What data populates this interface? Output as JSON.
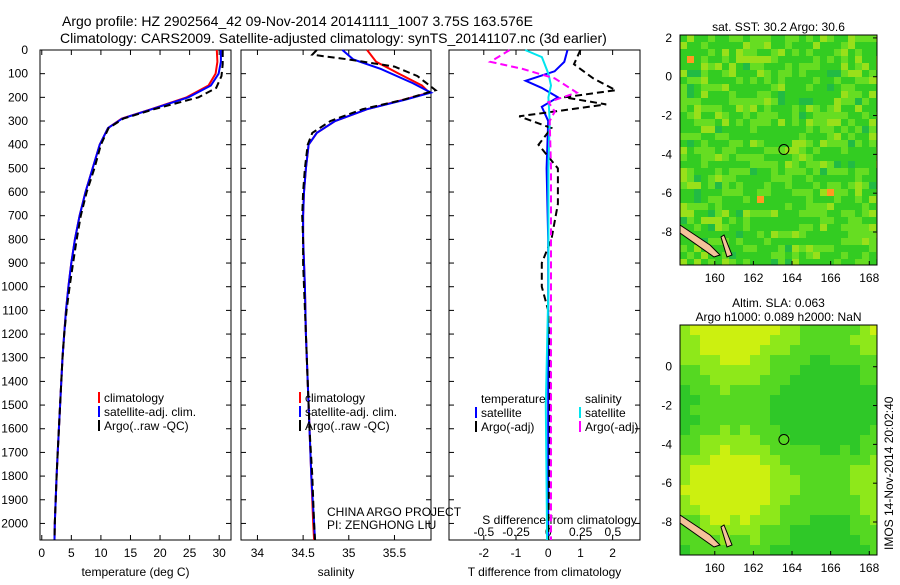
{
  "title": {
    "line1": "Argo profile: HZ 2902564_42 09-Nov-2014 20141111_1007 3.75S 163.576E",
    "line2": "Climatology: CARS2009. Satellite-adjusted climatology: synTS_20141107.nc (3d earlier)"
  },
  "credit": {
    "project": "CHINA ARGO PROJECT",
    "pi": "PI: ZENGHONG LIU",
    "imos": "IMOS 14-Nov-2014 20:02:40"
  },
  "chart_data": [
    {
      "type": "line",
      "id": "temperature",
      "xlabel": "temperature (deg C)",
      "ylabel": "",
      "xlim": [
        -0.3,
        32
      ],
      "ylim": [
        0,
        2070
      ],
      "xticks": [
        0,
        5,
        10,
        15,
        20,
        25,
        30
      ],
      "yticks": [
        0,
        100,
        200,
        300,
        400,
        500,
        600,
        700,
        800,
        900,
        1000,
        1100,
        1200,
        1300,
        1400,
        1500,
        1600,
        1700,
        1800,
        1900,
        2000
      ],
      "legend": [
        "climatology",
        "satellite-adj. clim.",
        "Argo(..raw -QC)"
      ],
      "legend_placement": "bottom-center",
      "series": [
        {
          "name": "climatology",
          "color": "#ff0000",
          "dash": false,
          "points": [
            [
              29.6,
              0
            ],
            [
              29.7,
              50
            ],
            [
              29.4,
              100
            ],
            [
              28.2,
              150
            ],
            [
              24.5,
              200
            ],
            [
              18.5,
              250
            ],
            [
              13.5,
              290
            ],
            [
              11.2,
              330
            ],
            [
              9.8,
              400
            ],
            [
              8.6,
              500
            ],
            [
              7.4,
              600
            ],
            [
              6.4,
              700
            ],
            [
              5.6,
              800
            ],
            [
              5.0,
              900
            ],
            [
              4.5,
              1000
            ],
            [
              4.1,
              1100
            ],
            [
              3.8,
              1200
            ],
            [
              3.5,
              1300
            ],
            [
              3.3,
              1400
            ],
            [
              3.1,
              1500
            ],
            [
              2.9,
              1600
            ],
            [
              2.7,
              1700
            ],
            [
              2.5,
              1800
            ],
            [
              2.35,
              1900
            ],
            [
              2.2,
              2000
            ],
            [
              2.15,
              2070
            ]
          ]
        },
        {
          "name": "satellite-adj. clim.",
          "color": "#0000ff",
          "dash": false,
          "points": [
            [
              30.3,
              0
            ],
            [
              30.3,
              50
            ],
            [
              29.9,
              100
            ],
            [
              28.6,
              150
            ],
            [
              24.8,
              200
            ],
            [
              18.6,
              250
            ],
            [
              13.6,
              290
            ],
            [
              11.2,
              330
            ],
            [
              9.8,
              400
            ],
            [
              8.6,
              500
            ],
            [
              7.4,
              600
            ],
            [
              6.4,
              700
            ],
            [
              5.6,
              800
            ],
            [
              5.0,
              900
            ],
            [
              4.5,
              1000
            ],
            [
              4.1,
              1100
            ],
            [
              3.8,
              1200
            ],
            [
              3.5,
              1300
            ],
            [
              3.3,
              1400
            ],
            [
              3.1,
              1500
            ],
            [
              2.9,
              1600
            ],
            [
              2.7,
              1700
            ],
            [
              2.5,
              1800
            ],
            [
              2.35,
              1900
            ],
            [
              2.2,
              2000
            ],
            [
              2.15,
              2070
            ]
          ]
        },
        {
          "name": "Argo(..raw -QC)",
          "color": "#000000",
          "dash": true,
          "points": [
            [
              30.6,
              0
            ],
            [
              30.6,
              60
            ],
            [
              30.4,
              110
            ],
            [
              29.5,
              160
            ],
            [
              26.5,
              200
            ],
            [
              19,
              250
            ],
            [
              13.8,
              290
            ],
            [
              11.3,
              330
            ],
            [
              10.0,
              400
            ],
            [
              8.9,
              500
            ],
            [
              7.6,
              600
            ],
            [
              6.6,
              700
            ],
            [
              5.9,
              800
            ],
            [
              5.3,
              900
            ],
            [
              4.7,
              1000
            ],
            [
              4.2,
              1100
            ],
            [
              3.8,
              1200
            ],
            [
              3.5,
              1300
            ],
            [
              3.3,
              1400
            ],
            [
              3.1,
              1500
            ],
            [
              2.9,
              1600
            ],
            [
              2.7,
              1700
            ],
            [
              2.5,
              1800
            ],
            [
              2.35,
              1900
            ],
            [
              2.2,
              2000
            ],
            [
              2.15,
              2070
            ]
          ]
        }
      ]
    },
    {
      "type": "line",
      "id": "salinity",
      "xlabel": "salinity",
      "xlim": [
        33.82,
        35.9
      ],
      "ylim": [
        0,
        2070
      ],
      "xticks": [
        34,
        34.5,
        35,
        35.5
      ],
      "legend": [
        "climatology",
        "satellite-adj. clim.",
        "Argo(..raw -QC)"
      ],
      "series": [
        {
          "name": "climatology",
          "color": "#ff0000",
          "dash": false,
          "points": [
            [
              35.2,
              0
            ],
            [
              35.3,
              50
            ],
            [
              35.55,
              100
            ],
            [
              35.8,
              150
            ],
            [
              35.88,
              180
            ],
            [
              35.6,
              210
            ],
            [
              35.2,
              250
            ],
            [
              34.85,
              300
            ],
            [
              34.65,
              350
            ],
            [
              34.56,
              400
            ],
            [
              34.53,
              500
            ],
            [
              34.51,
              600
            ],
            [
              34.5,
              700
            ],
            [
              34.5,
              800
            ],
            [
              34.51,
              900
            ],
            [
              34.52,
              1000
            ],
            [
              34.53,
              1200
            ],
            [
              34.55,
              1400
            ],
            [
              34.57,
              1600
            ],
            [
              34.59,
              1800
            ],
            [
              34.61,
              2000
            ],
            [
              34.62,
              2070
            ]
          ]
        },
        {
          "name": "satellite-adj. clim.",
          "color": "#0000ff",
          "dash": false,
          "points": [
            [
              34.93,
              0
            ],
            [
              35.05,
              40
            ],
            [
              35.35,
              80
            ],
            [
              35.7,
              140
            ],
            [
              35.9,
              180
            ],
            [
              35.62,
              210
            ],
            [
              35.2,
              250
            ],
            [
              34.85,
              300
            ],
            [
              34.65,
              350
            ],
            [
              34.56,
              400
            ],
            [
              34.53,
              500
            ],
            [
              34.51,
              600
            ],
            [
              34.5,
              700
            ],
            [
              34.5,
              800
            ],
            [
              34.51,
              900
            ],
            [
              34.52,
              1000
            ],
            [
              34.53,
              1200
            ],
            [
              34.55,
              1400
            ],
            [
              34.57,
              1600
            ],
            [
              34.59,
              1800
            ],
            [
              34.62,
              2000
            ],
            [
              34.63,
              2070
            ]
          ]
        },
        {
          "name": "Argo(..raw -QC)",
          "color": "#000000",
          "dash": true,
          "points": [
            [
              34.65,
              0
            ],
            [
              34.6,
              20
            ],
            [
              35.0,
              40
            ],
            [
              35.5,
              70
            ],
            [
              35.75,
              110
            ],
            [
              35.95,
              170
            ],
            [
              35.6,
              210
            ],
            [
              35.15,
              250
            ],
            [
              34.8,
              300
            ],
            [
              34.6,
              350
            ],
            [
              34.55,
              400
            ],
            [
              34.52,
              500
            ],
            [
              34.5,
              600
            ],
            [
              34.49,
              700
            ],
            [
              34.5,
              800
            ],
            [
              34.5,
              900
            ],
            [
              34.51,
              1000
            ],
            [
              34.53,
              1200
            ],
            [
              34.55,
              1400
            ],
            [
              34.57,
              1600
            ],
            [
              34.6,
              1800
            ],
            [
              34.62,
              2000
            ],
            [
              34.63,
              2070
            ]
          ]
        }
      ]
    },
    {
      "type": "line",
      "id": "difference",
      "xlabel": "T difference from climatology",
      "x2label": "S difference from climatology",
      "xlim": [
        -3.08,
        2.85
      ],
      "x2lim": [
        -0.77,
        0.71
      ],
      "ylim": [
        0,
        2070
      ],
      "xticks": [
        -2,
        -1,
        0,
        1,
        2
      ],
      "x2ticks": [
        -0.5,
        -0.25,
        0,
        0.25,
        0.5
      ],
      "legend_groups": [
        {
          "title": "temperature",
          "items": [
            "satellite",
            "Argo(-adj)"
          ]
        },
        {
          "title": "salinity",
          "items": [
            "satellite",
            "Argo(-adj)"
          ]
        }
      ],
      "series": [
        {
          "name": "temperature satellite",
          "axis": "T",
          "color": "#0000ff",
          "dash": false,
          "points": [
            [
              0.6,
              0
            ],
            [
              0.5,
              50
            ],
            [
              0.2,
              90
            ],
            [
              -0.7,
              130
            ],
            [
              -0.2,
              160
            ],
            [
              0.3,
              200
            ],
            [
              -0.2,
              240
            ],
            [
              0,
              300
            ],
            [
              -0.05,
              500
            ],
            [
              0,
              800
            ],
            [
              0,
              1200
            ],
            [
              0,
              1600
            ],
            [
              0,
              2070
            ]
          ]
        },
        {
          "name": "temperature Argo(-adj)",
          "axis": "T",
          "color": "#000000",
          "dash": true,
          "points": [
            [
              1.0,
              0
            ],
            [
              0.8,
              60
            ],
            [
              1.4,
              120
            ],
            [
              2.1,
              170
            ],
            [
              0.5,
              200
            ],
            [
              1.8,
              230
            ],
            [
              -0.9,
              280
            ],
            [
              0.1,
              330
            ],
            [
              -0.3,
              400
            ],
            [
              0.3,
              500
            ],
            [
              0.3,
              650
            ],
            [
              0.1,
              800
            ],
            [
              -0.2,
              900
            ],
            [
              -0.2,
              1000
            ],
            [
              0,
              1100
            ],
            [
              0.05,
              1300
            ],
            [
              0.05,
              1600
            ],
            [
              0,
              2070
            ]
          ]
        },
        {
          "name": "salinity satellite",
          "axis": "S",
          "color": "#00e5ee",
          "dash": false,
          "points": [
            [
              -0.18,
              0
            ],
            [
              -0.05,
              30
            ],
            [
              0.0,
              100
            ],
            [
              0.02,
              150
            ],
            [
              0,
              200
            ],
            [
              0.01,
              300
            ],
            [
              0,
              500
            ],
            [
              0,
              1000
            ],
            [
              -0.02,
              1500
            ],
            [
              -0.01,
              2070
            ]
          ]
        },
        {
          "name": "salinity Argo(-adj)",
          "axis": "S",
          "color": "#ff00ff",
          "dash": true,
          "points": [
            [
              -0.3,
              0
            ],
            [
              -0.45,
              50
            ],
            [
              -0.2,
              80
            ],
            [
              0.05,
              120
            ],
            [
              0.22,
              180
            ],
            [
              0.0,
              220
            ],
            [
              0.05,
              260
            ],
            [
              0.01,
              300
            ],
            [
              0.02,
              500
            ],
            [
              0.02,
              1000
            ],
            [
              0.02,
              1500
            ],
            [
              0.02,
              2070
            ]
          ]
        }
      ]
    }
  ],
  "maps": [
    {
      "id": "sst",
      "title_lines": [
        "sat. SST: 30.2 Argo: 30.6"
      ],
      "lon_range": [
        158.2,
        168.4
      ],
      "lat_range": [
        -9.7,
        2.15
      ],
      "xticks": [
        160,
        162,
        164,
        166,
        168
      ],
      "yticks": [
        2,
        0,
        -2,
        -4,
        -6,
        -8
      ],
      "marker": {
        "lon": 163.58,
        "lat": -3.75
      }
    },
    {
      "id": "sla",
      "title_lines": [
        "Altim. SLA: 0.063",
        "Argo h1000: 0.089 h2000: NaN"
      ],
      "lon_range": [
        158.2,
        168.4
      ],
      "lat_range": [
        -9.7,
        2.15
      ],
      "xticks": [
        160,
        162,
        164,
        166,
        168
      ],
      "yticks": [
        0,
        -2,
        -4,
        -6,
        -8
      ],
      "marker": {
        "lon": 163.58,
        "lat": -3.75
      }
    }
  ]
}
